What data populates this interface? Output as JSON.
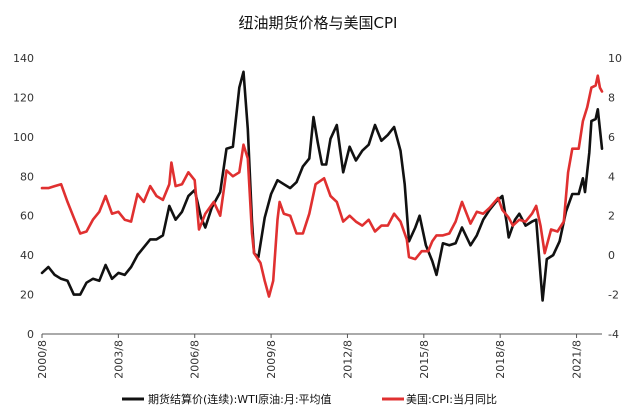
{
  "chart_data": {
    "type": "line",
    "title": "纽油期货价格与美国CPI",
    "x_ticks": [
      "2000/8",
      "2003/8",
      "2006/8",
      "2009/8",
      "2012/8",
      "2015/8",
      "2018/8",
      "2021/8"
    ],
    "x_range": [
      "2000-08",
      "2022-08"
    ],
    "y_left": {
      "ticks": [
        "0",
        "20",
        "40",
        "60",
        "80",
        "100",
        "120",
        "140"
      ],
      "range": [
        0,
        140
      ]
    },
    "y_right": {
      "ticks": [
        "-4",
        "-2",
        "0",
        "2",
        "4",
        "6",
        "8",
        "10"
      ],
      "range": [
        -4,
        10
      ]
    },
    "grid": false,
    "legend_position": "bottom",
    "series": [
      {
        "name": "期货结算价(连续):WTI原油:月:平均值",
        "axis": "left",
        "color": "#111111",
        "points": [
          [
            "2000-08",
            31
          ],
          [
            "2000-11",
            34
          ],
          [
            "2001-02",
            30
          ],
          [
            "2001-05",
            28
          ],
          [
            "2001-08",
            27
          ],
          [
            "2001-11",
            20
          ],
          [
            "2002-02",
            20
          ],
          [
            "2002-05",
            26
          ],
          [
            "2002-08",
            28
          ],
          [
            "2002-11",
            27
          ],
          [
            "2003-02",
            35
          ],
          [
            "2003-05",
            28
          ],
          [
            "2003-08",
            31
          ],
          [
            "2003-11",
            30
          ],
          [
            "2004-02",
            34
          ],
          [
            "2004-05",
            40
          ],
          [
            "2004-08",
            44
          ],
          [
            "2004-11",
            48
          ],
          [
            "2005-02",
            48
          ],
          [
            "2005-05",
            50
          ],
          [
            "2005-08",
            65
          ],
          [
            "2005-11",
            58
          ],
          [
            "2006-02",
            62
          ],
          [
            "2006-05",
            70
          ],
          [
            "2006-08",
            73
          ],
          [
            "2006-11",
            59
          ],
          [
            "2007-01",
            54
          ],
          [
            "2007-04",
            64
          ],
          [
            "2007-08",
            72
          ],
          [
            "2007-11",
            94
          ],
          [
            "2008-02",
            95
          ],
          [
            "2008-05",
            125
          ],
          [
            "2008-07",
            133
          ],
          [
            "2008-09",
            104
          ],
          [
            "2008-11",
            57
          ],
          [
            "2008-12",
            41
          ],
          [
            "2009-02",
            39
          ],
          [
            "2009-05",
            59
          ],
          [
            "2009-08",
            71
          ],
          [
            "2009-11",
            78
          ],
          [
            "2010-02",
            76
          ],
          [
            "2010-05",
            74
          ],
          [
            "2010-08",
            77
          ],
          [
            "2010-11",
            85
          ],
          [
            "2011-02",
            89
          ],
          [
            "2011-04",
            110
          ],
          [
            "2011-06",
            97
          ],
          [
            "2011-08",
            86
          ],
          [
            "2011-10",
            86
          ],
          [
            "2011-12",
            99
          ],
          [
            "2012-03",
            106
          ],
          [
            "2012-06",
            82
          ],
          [
            "2012-09",
            95
          ],
          [
            "2012-12",
            88
          ],
          [
            "2013-03",
            93
          ],
          [
            "2013-06",
            96
          ],
          [
            "2013-09",
            106
          ],
          [
            "2013-12",
            98
          ],
          [
            "2014-03",
            101
          ],
          [
            "2014-06",
            105
          ],
          [
            "2014-09",
            93
          ],
          [
            "2014-11",
            76
          ],
          [
            "2015-01",
            47
          ],
          [
            "2015-04",
            54
          ],
          [
            "2015-06",
            60
          ],
          [
            "2015-09",
            45
          ],
          [
            "2015-12",
            37
          ],
          [
            "2016-02",
            30
          ],
          [
            "2016-05",
            46
          ],
          [
            "2016-08",
            45
          ],
          [
            "2016-11",
            46
          ],
          [
            "2017-02",
            54
          ],
          [
            "2017-06",
            45
          ],
          [
            "2017-09",
            50
          ],
          [
            "2017-12",
            58
          ],
          [
            "2018-03",
            63
          ],
          [
            "2018-06",
            67
          ],
          [
            "2018-09",
            70
          ],
          [
            "2018-11",
            57
          ],
          [
            "2018-12",
            49
          ],
          [
            "2019-03",
            58
          ],
          [
            "2019-05",
            61
          ],
          [
            "2019-08",
            55
          ],
          [
            "2019-11",
            57
          ],
          [
            "2020-01",
            58
          ],
          [
            "2020-03",
            30
          ],
          [
            "2020-04",
            17
          ],
          [
            "2020-06",
            38
          ],
          [
            "2020-09",
            40
          ],
          [
            "2020-12",
            47
          ],
          [
            "2021-03",
            62
          ],
          [
            "2021-06",
            71
          ],
          [
            "2021-09",
            71
          ],
          [
            "2021-11",
            79
          ],
          [
            "2021-12",
            72
          ],
          [
            "2022-02",
            92
          ],
          [
            "2022-03",
            108
          ],
          [
            "2022-05",
            109
          ],
          [
            "2022-06",
            114
          ],
          [
            "2022-08",
            94
          ]
        ]
      },
      {
        "name": "美国:CPI:当月同比",
        "axis": "right",
        "color": "#e03030",
        "points": [
          [
            "2000-08",
            3.4
          ],
          [
            "2000-11",
            3.4
          ],
          [
            "2001-02",
            3.5
          ],
          [
            "2001-05",
            3.6
          ],
          [
            "2001-08",
            2.7
          ],
          [
            "2001-11",
            1.9
          ],
          [
            "2002-02",
            1.1
          ],
          [
            "2002-05",
            1.2
          ],
          [
            "2002-08",
            1.8
          ],
          [
            "2002-11",
            2.2
          ],
          [
            "2003-02",
            3.0
          ],
          [
            "2003-05",
            2.1
          ],
          [
            "2003-08",
            2.2
          ],
          [
            "2003-11",
            1.8
          ],
          [
            "2004-02",
            1.7
          ],
          [
            "2004-05",
            3.1
          ],
          [
            "2004-08",
            2.7
          ],
          [
            "2004-11",
            3.5
          ],
          [
            "2005-02",
            3.0
          ],
          [
            "2005-05",
            2.8
          ],
          [
            "2005-08",
            3.6
          ],
          [
            "2005-09",
            4.7
          ],
          [
            "2005-11",
            3.5
          ],
          [
            "2006-02",
            3.6
          ],
          [
            "2006-05",
            4.2
          ],
          [
            "2006-08",
            3.8
          ],
          [
            "2006-10",
            1.3
          ],
          [
            "2007-01",
            2.1
          ],
          [
            "2007-05",
            2.7
          ],
          [
            "2007-08",
            2.0
          ],
          [
            "2007-11",
            4.3
          ],
          [
            "2008-02",
            4.0
          ],
          [
            "2008-05",
            4.2
          ],
          [
            "2008-07",
            5.6
          ],
          [
            "2008-09",
            4.9
          ],
          [
            "2008-11",
            1.1
          ],
          [
            "2008-12",
            0.1
          ],
          [
            "2009-03",
            -0.4
          ],
          [
            "2009-05",
            -1.3
          ],
          [
            "2009-07",
            -2.1
          ],
          [
            "2009-09",
            -1.3
          ],
          [
            "2009-11",
            1.8
          ],
          [
            "2009-12",
            2.7
          ],
          [
            "2010-02",
            2.1
          ],
          [
            "2010-05",
            2.0
          ],
          [
            "2010-08",
            1.1
          ],
          [
            "2010-11",
            1.1
          ],
          [
            "2011-02",
            2.1
          ],
          [
            "2011-05",
            3.6
          ],
          [
            "2011-09",
            3.9
          ],
          [
            "2011-12",
            3.0
          ],
          [
            "2012-03",
            2.7
          ],
          [
            "2012-06",
            1.7
          ],
          [
            "2012-09",
            2.0
          ],
          [
            "2012-12",
            1.7
          ],
          [
            "2013-03",
            1.5
          ],
          [
            "2013-06",
            1.8
          ],
          [
            "2013-09",
            1.2
          ],
          [
            "2013-12",
            1.5
          ],
          [
            "2014-03",
            1.5
          ],
          [
            "2014-06",
            2.1
          ],
          [
            "2014-09",
            1.7
          ],
          [
            "2014-12",
            0.8
          ],
          [
            "2015-01",
            -0.1
          ],
          [
            "2015-04",
            -0.2
          ],
          [
            "2015-07",
            0.2
          ],
          [
            "2015-10",
            0.2
          ],
          [
            "2015-12",
            0.7
          ],
          [
            "2016-02",
            1.0
          ],
          [
            "2016-05",
            1.0
          ],
          [
            "2016-08",
            1.1
          ],
          [
            "2016-11",
            1.7
          ],
          [
            "2017-02",
            2.7
          ],
          [
            "2017-06",
            1.6
          ],
          [
            "2017-09",
            2.2
          ],
          [
            "2017-12",
            2.1
          ],
          [
            "2018-03",
            2.4
          ],
          [
            "2018-07",
            2.9
          ],
          [
            "2018-09",
            2.3
          ],
          [
            "2018-12",
            1.9
          ],
          [
            "2019-02",
            1.5
          ],
          [
            "2019-05",
            1.8
          ],
          [
            "2019-08",
            1.7
          ],
          [
            "2019-11",
            2.1
          ],
          [
            "2020-01",
            2.5
          ],
          [
            "2020-03",
            1.5
          ],
          [
            "2020-05",
            0.1
          ],
          [
            "2020-08",
            1.3
          ],
          [
            "2020-11",
            1.2
          ],
          [
            "2021-02",
            1.7
          ],
          [
            "2021-04",
            4.2
          ],
          [
            "2021-06",
            5.4
          ],
          [
            "2021-09",
            5.4
          ],
          [
            "2021-11",
            6.8
          ],
          [
            "2022-01",
            7.5
          ],
          [
            "2022-03",
            8.5
          ],
          [
            "2022-05",
            8.6
          ],
          [
            "2022-06",
            9.1
          ],
          [
            "2022-07",
            8.5
          ],
          [
            "2022-08",
            8.3
          ]
        ]
      }
    ]
  }
}
